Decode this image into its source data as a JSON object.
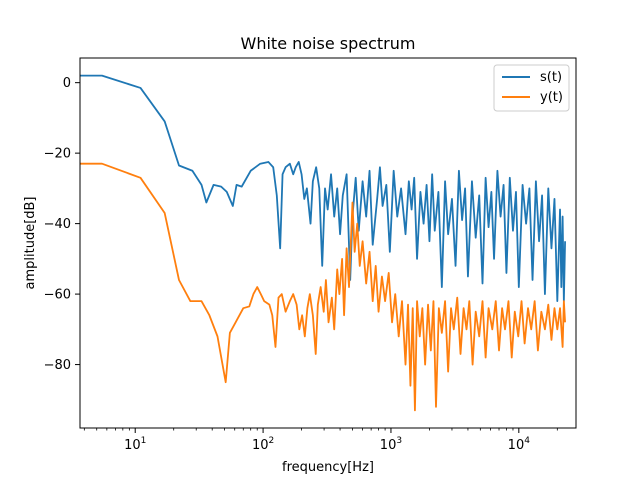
{
  "chart_data": {
    "type": "line",
    "title": "White noise spectrum",
    "xlabel": "frequency[Hz]",
    "ylabel": "amplitude[dB]",
    "xscale": "log",
    "xlim": [
      3.7,
      28000
    ],
    "ylim": [
      -98,
      7
    ],
    "x_major_ticks": [
      10,
      100,
      1000,
      10000
    ],
    "x_tick_labels": [
      "10^1",
      "10^2",
      "10^3",
      "10^4"
    ],
    "y_ticks": [
      0,
      -20,
      -40,
      -60,
      -80
    ],
    "y_tick_labels": [
      "0",
      "−20",
      "−40",
      "−60",
      "−80"
    ],
    "grid": false,
    "legend_position": "top-right",
    "series": [
      {
        "name": "s(t)",
        "color": "#1f77b4",
        "points": [
          [
            3.7,
            2
          ],
          [
            5.5,
            2
          ],
          [
            11,
            -1.5
          ],
          [
            17,
            -11
          ],
          [
            22,
            -23.5
          ],
          [
            28,
            -25
          ],
          [
            33,
            -29
          ],
          [
            36,
            -34
          ],
          [
            41,
            -29
          ],
          [
            47,
            -29.5
          ],
          [
            52,
            -31
          ],
          [
            58,
            -35
          ],
          [
            62,
            -29
          ],
          [
            68,
            -29.5
          ],
          [
            80,
            -25
          ],
          [
            95,
            -23
          ],
          [
            110,
            -22.5
          ],
          [
            120,
            -24
          ],
          [
            128,
            -32
          ],
          [
            136,
            -47
          ],
          [
            142,
            -26
          ],
          [
            150,
            -24
          ],
          [
            162,
            -23
          ],
          [
            172,
            -26
          ],
          [
            180,
            -24
          ],
          [
            190,
            -22.5
          ],
          [
            200,
            -26
          ],
          [
            210,
            -33
          ],
          [
            220,
            -30
          ],
          [
            235,
            -40
          ],
          [
            245,
            -28
          ],
          [
            260,
            -24
          ],
          [
            275,
            -30
          ],
          [
            290,
            -52
          ],
          [
            305,
            -30
          ],
          [
            320,
            -36
          ],
          [
            340,
            -26
          ],
          [
            360,
            -38
          ],
          [
            380,
            -30
          ],
          [
            400,
            -43
          ],
          [
            420,
            -32
          ],
          [
            450,
            -26
          ],
          [
            480,
            -56
          ],
          [
            500,
            -38
          ],
          [
            530,
            -27
          ],
          [
            560,
            -42
          ],
          [
            600,
            -28
          ],
          [
            640,
            -38
          ],
          [
            680,
            -25
          ],
          [
            720,
            -46
          ],
          [
            780,
            -33
          ],
          [
            820,
            -24
          ],
          [
            860,
            -35
          ],
          [
            920,
            -29
          ],
          [
            980,
            -48
          ],
          [
            1050,
            -25
          ],
          [
            1120,
            -38
          ],
          [
            1200,
            -30
          ],
          [
            1300,
            -43
          ],
          [
            1380,
            -28
          ],
          [
            1450,
            -36
          ],
          [
            1520,
            -27
          ],
          [
            1600,
            -50
          ],
          [
            1700,
            -31
          ],
          [
            1800,
            -40
          ],
          [
            1900,
            -29
          ],
          [
            2000,
            -45
          ],
          [
            2100,
            -26
          ],
          [
            2200,
            -42
          ],
          [
            2350,
            -31
          ],
          [
            2500,
            -58
          ],
          [
            2650,
            -28
          ],
          [
            2800,
            -43
          ],
          [
            3000,
            -33
          ],
          [
            3200,
            -52
          ],
          [
            3400,
            -25
          ],
          [
            3600,
            -39
          ],
          [
            3800,
            -30
          ],
          [
            4000,
            -55
          ],
          [
            4300,
            -28
          ],
          [
            4600,
            -44
          ],
          [
            4900,
            -32
          ],
          [
            5200,
            -57
          ],
          [
            5500,
            -27
          ],
          [
            5800,
            -41
          ],
          [
            6100,
            -31
          ],
          [
            6400,
            -50
          ],
          [
            6800,
            -25
          ],
          [
            7200,
            -38
          ],
          [
            7600,
            -29
          ],
          [
            8000,
            -54
          ],
          [
            8500,
            -27
          ],
          [
            9000,
            -42
          ],
          [
            9500,
            -31
          ],
          [
            10000,
            -58
          ],
          [
            10700,
            -29
          ],
          [
            11400,
            -40
          ],
          [
            12100,
            -30
          ],
          [
            12800,
            -56
          ],
          [
            13600,
            -28
          ],
          [
            14400,
            -45
          ],
          [
            15200,
            -32
          ],
          [
            16000,
            -60
          ],
          [
            17000,
            -30
          ],
          [
            18000,
            -47
          ],
          [
            19000,
            -33
          ],
          [
            20000,
            -62
          ],
          [
            21000,
            -36
          ],
          [
            21500,
            -58
          ],
          [
            22000,
            -38
          ],
          [
            22500,
            -62
          ],
          [
            23000,
            -45
          ]
        ]
      },
      {
        "name": "y(t)",
        "color": "#ff7f0e",
        "points": [
          [
            3.7,
            -23
          ],
          [
            5.5,
            -23
          ],
          [
            11,
            -27
          ],
          [
            17,
            -37
          ],
          [
            22,
            -56
          ],
          [
            27,
            -62
          ],
          [
            33,
            -62
          ],
          [
            38,
            -66
          ],
          [
            44,
            -72
          ],
          [
            51,
            -85
          ],
          [
            55,
            -71
          ],
          [
            61,
            -68
          ],
          [
            70,
            -64
          ],
          [
            78,
            -63.5
          ],
          [
            84,
            -60
          ],
          [
            90,
            -58
          ],
          [
            96,
            -60
          ],
          [
            102,
            -62
          ],
          [
            112,
            -63
          ],
          [
            118,
            -66
          ],
          [
            125,
            -75
          ],
          [
            132,
            -61
          ],
          [
            140,
            -60
          ],
          [
            150,
            -65
          ],
          [
            162,
            -62
          ],
          [
            172,
            -60
          ],
          [
            183,
            -63
          ],
          [
            192,
            -70
          ],
          [
            202,
            -66
          ],
          [
            212,
            -72
          ],
          [
            222,
            -64
          ],
          [
            232,
            -60
          ],
          [
            245,
            -66
          ],
          [
            258,
            -77
          ],
          [
            268,
            -63
          ],
          [
            282,
            -58
          ],
          [
            298,
            -65
          ],
          [
            310,
            -56
          ],
          [
            325,
            -68
          ],
          [
            345,
            -61
          ],
          [
            360,
            -70
          ],
          [
            380,
            -53
          ],
          [
            395,
            -60
          ],
          [
            415,
            -50
          ],
          [
            430,
            -66
          ],
          [
            450,
            -47
          ],
          [
            470,
            -58
          ],
          [
            500,
            -34
          ],
          [
            520,
            -48
          ],
          [
            545,
            -40
          ],
          [
            570,
            -52
          ],
          [
            600,
            -45
          ],
          [
            640,
            -57
          ],
          [
            680,
            -48
          ],
          [
            720,
            -62
          ],
          [
            760,
            -52
          ],
          [
            800,
            -65
          ],
          [
            850,
            -55
          ],
          [
            900,
            -62
          ],
          [
            960,
            -54
          ],
          [
            1020,
            -68
          ],
          [
            1080,
            -60
          ],
          [
            1150,
            -72
          ],
          [
            1220,
            -62
          ],
          [
            1300,
            -80
          ],
          [
            1360,
            -63
          ],
          [
            1420,
            -86
          ],
          [
            1480,
            -64
          ],
          [
            1540,
            -93
          ],
          [
            1600,
            -62
          ],
          [
            1680,
            -72
          ],
          [
            1760,
            -64
          ],
          [
            1850,
            -80
          ],
          [
            1950,
            -63
          ],
          [
            2050,
            -76
          ],
          [
            2150,
            -62
          ],
          [
            2250,
            -92
          ],
          [
            2370,
            -64
          ],
          [
            2500,
            -71
          ],
          [
            2650,
            -62
          ],
          [
            2800,
            -82
          ],
          [
            2950,
            -64
          ],
          [
            3100,
            -70
          ],
          [
            3300,
            -61
          ],
          [
            3500,
            -77
          ],
          [
            3700,
            -64
          ],
          [
            3900,
            -70
          ],
          [
            4100,
            -62
          ],
          [
            4350,
            -80
          ],
          [
            4600,
            -65
          ],
          [
            4900,
            -72
          ],
          [
            5200,
            -62
          ],
          [
            5500,
            -78
          ],
          [
            5800,
            -64
          ],
          [
            6200,
            -70
          ],
          [
            6600,
            -62
          ],
          [
            7000,
            -76
          ],
          [
            7400,
            -64
          ],
          [
            7800,
            -70
          ],
          [
            8300,
            -62
          ],
          [
            8800,
            -78
          ],
          [
            9300,
            -65
          ],
          [
            9900,
            -72
          ],
          [
            10500,
            -62
          ],
          [
            11100,
            -74
          ],
          [
            11800,
            -64
          ],
          [
            12500,
            -70
          ],
          [
            13300,
            -62
          ],
          [
            14100,
            -76
          ],
          [
            15000,
            -65
          ],
          [
            16000,
            -70
          ],
          [
            17000,
            -63
          ],
          [
            18000,
            -73
          ],
          [
            19000,
            -64
          ],
          [
            20000,
            -70
          ],
          [
            21000,
            -64
          ],
          [
            22000,
            -75
          ],
          [
            22500,
            -62
          ],
          [
            23000,
            -68
          ]
        ]
      }
    ]
  }
}
